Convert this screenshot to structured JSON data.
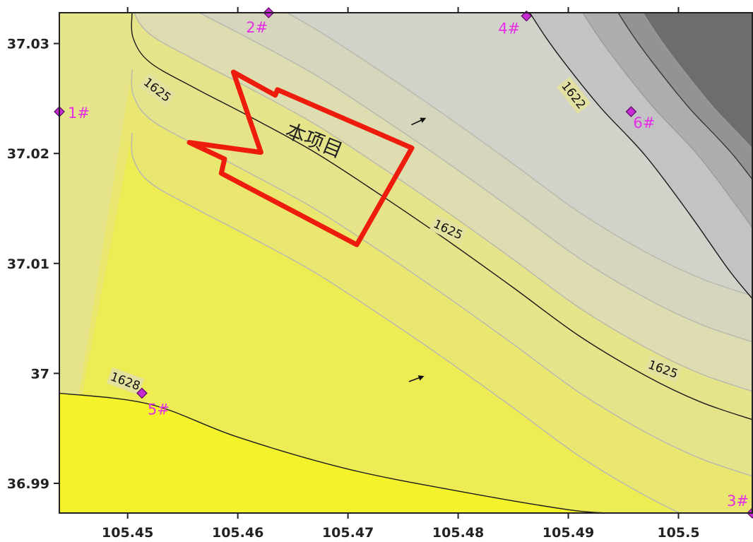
{
  "chart_data": {
    "type": "contour",
    "title": "",
    "xlabel": "",
    "ylabel": "",
    "xlim": [
      105.4438,
      105.5067
    ],
    "ylim": [
      36.9873,
      37.0328
    ],
    "x_ticks": [
      105.45,
      105.46,
      105.47,
      105.48,
      105.49,
      105.5
    ],
    "x_tick_labels": [
      "105.45",
      "105.46",
      "105.47",
      "105.48",
      "105.49",
      "105.5"
    ],
    "y_ticks": [
      36.99,
      37,
      37.01,
      37.02,
      37.03
    ],
    "y_tick_labels": [
      "36.99",
      "37",
      "37.01",
      "37.02",
      "37.03"
    ],
    "labeled_contours": [
      {
        "level": 1628,
        "label": "1628",
        "points": [
          [
            105.4438,
            36.9982
          ],
          [
            105.452,
            36.9972
          ],
          [
            105.46,
            36.9942
          ],
          [
            105.47,
            36.9913
          ],
          [
            105.48,
            36.9893
          ],
          [
            105.49,
            36.9876
          ],
          [
            105.4938,
            36.9873
          ]
        ]
      },
      {
        "level": 1625,
        "label": "1625",
        "points": [
          [
            105.4504,
            37.0328
          ],
          [
            105.4505,
            37.0305
          ],
          [
            105.452,
            37.0283
          ],
          [
            105.456,
            37.026
          ],
          [
            105.461,
            37.0234
          ],
          [
            105.467,
            37.0201
          ],
          [
            105.473,
            37.0162
          ],
          [
            105.479,
            37.0121
          ],
          [
            105.485,
            37.0078
          ],
          [
            105.491,
            37.0034
          ],
          [
            105.497,
            36.9998
          ],
          [
            105.502,
            36.9974
          ],
          [
            105.5067,
            36.9958
          ]
        ]
      },
      {
        "level": 1622,
        "label": "1622",
        "points": [
          [
            105.4865,
            37.0328
          ],
          [
            105.488,
            37.0305
          ],
          [
            105.49,
            37.0278
          ],
          [
            105.493,
            37.0241
          ],
          [
            105.497,
            37.0198
          ],
          [
            105.501,
            37.0145
          ],
          [
            105.5045,
            37.0095
          ],
          [
            105.5067,
            37.0068
          ]
        ]
      }
    ],
    "contour_labels": [
      {
        "text": "1625",
        "x": 105.4527,
        "y": 37.0258,
        "angle": 38
      },
      {
        "text": "1622",
        "x": 105.4905,
        "y": 37.0253,
        "angle": 52
      },
      {
        "text": "1625",
        "x": 105.4791,
        "y": 37.0131,
        "angle": 25
      },
      {
        "text": "1625",
        "x": 105.4986,
        "y": 37.0004,
        "angle": 20
      },
      {
        "text": "1628",
        "x": 105.4498,
        "y": 36.9993,
        "angle": 20
      }
    ],
    "wells": [
      {
        "label": "1#",
        "x": 105.4438,
        "y": 37.0238,
        "label_dx": 12,
        "label_dy": 9
      },
      {
        "label": "2#",
        "x": 105.4628,
        "y": 37.0328,
        "label_dx": -32,
        "label_dy": 28
      },
      {
        "label": "4#",
        "x": 105.4862,
        "y": 37.0325,
        "label_dx": -40,
        "label_dy": 25
      },
      {
        "label": "6#",
        "x": 105.4957,
        "y": 37.0238,
        "label_dx": 3,
        "label_dy": 23
      },
      {
        "label": "5#",
        "x": 105.4513,
        "y": 36.9982,
        "label_dx": 8,
        "label_dy": 30
      },
      {
        "label": "3#",
        "x": 105.5067,
        "y": 36.9873,
        "label_dx": -36,
        "label_dy": -10
      }
    ],
    "project": {
      "label": "本项目",
      "label_x": 105.4667,
      "label_y": 37.0206,
      "label_angle": 22,
      "outline_color": "#ee1c0c",
      "outline": [
        [
          105.4596,
          37.0274
        ],
        [
          105.4634,
          37.0253
        ],
        [
          105.4636,
          37.0258
        ],
        [
          105.4758,
          37.0205
        ],
        [
          105.4708,
          37.0117
        ],
        [
          105.4585,
          37.0182
        ],
        [
          105.4588,
          37.0195
        ],
        [
          105.4556,
          37.021
        ],
        [
          105.4621,
          37.0201
        ]
      ]
    },
    "flow_arrows": [
      {
        "x": 105.4764,
        "y": 37.0229,
        "angle": -25
      },
      {
        "x": 105.4762,
        "y": 36.9995,
        "angle": -20
      }
    ],
    "fill_gradient": {
      "low": "#f4f22a",
      "mid": "#d7d5b0",
      "high": "#e0e0e0",
      "dark": "#6d6d6d"
    }
  }
}
